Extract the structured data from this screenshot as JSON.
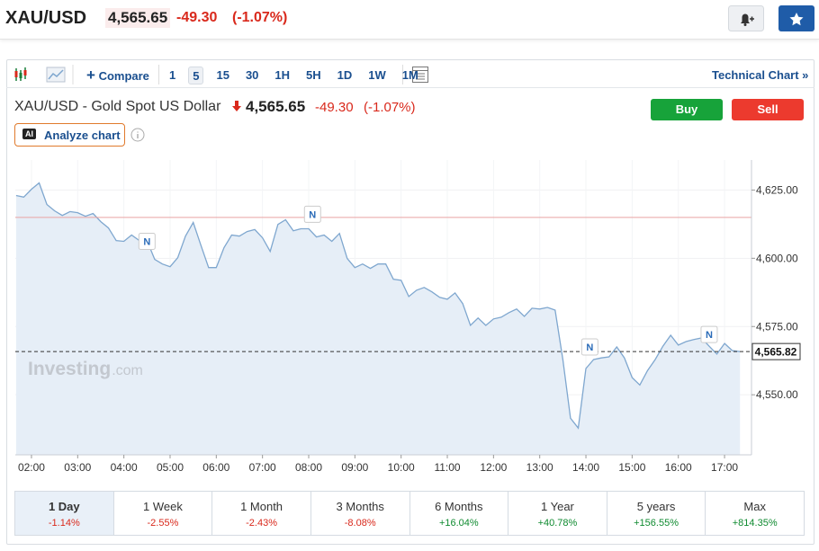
{
  "header": {
    "symbol": "XAU/USD",
    "price": "4,565.65",
    "change": "-49.30",
    "change_pct": "(-1.07%)"
  },
  "toolbar": {
    "compare": "Compare",
    "intervals": [
      "1",
      "5",
      "15",
      "30",
      "1H",
      "5H",
      "1D",
      "1W",
      "1M"
    ],
    "active_interval": "5",
    "technical_chart": "Technical Chart »"
  },
  "quote": {
    "name": "XAU/USD - Gold Spot US Dollar",
    "price": "4,565.65",
    "change": "-49.30",
    "change_pct": "(-1.07%)",
    "buy": "Buy",
    "sell": "Sell",
    "ai_badge": "AI",
    "analyze": "Analyze chart"
  },
  "chart_data": {
    "type": "area",
    "watermark": "Investing",
    "watermark_suffix": ".com",
    "x": [
      "01:40",
      "01:50",
      "02:00",
      "02:10",
      "02:20",
      "02:30",
      "02:40",
      "02:50",
      "03:00",
      "03:10",
      "03:20",
      "03:30",
      "03:40",
      "03:50",
      "04:00",
      "04:10",
      "04:20",
      "04:30",
      "04:40",
      "04:50",
      "05:00",
      "05:10",
      "05:20",
      "05:30",
      "05:40",
      "05:50",
      "06:00",
      "06:10",
      "06:20",
      "06:30",
      "06:40",
      "06:50",
      "07:00",
      "07:10",
      "07:20",
      "07:30",
      "07:40",
      "07:50",
      "08:00",
      "08:10",
      "08:20",
      "08:30",
      "08:40",
      "08:50",
      "09:00",
      "09:10",
      "09:20",
      "09:30",
      "09:40",
      "09:50",
      "10:00",
      "10:10",
      "10:20",
      "10:30",
      "10:40",
      "10:50",
      "11:00",
      "11:10",
      "11:20",
      "11:30",
      "11:40",
      "11:50",
      "12:00",
      "12:10",
      "12:20",
      "12:30",
      "12:40",
      "12:50",
      "13:00",
      "13:10",
      "13:20",
      "13:30",
      "13:40",
      "13:50",
      "14:00",
      "14:10",
      "14:20",
      "14:30",
      "14:40",
      "14:50",
      "15:00",
      "15:10",
      "15:20",
      "15:30",
      "15:40",
      "15:50",
      "16:00",
      "16:10",
      "16:20",
      "16:30",
      "16:40",
      "16:50",
      "17:00",
      "17:10",
      "17:20"
    ],
    "series": [
      {
        "name": "XAU/USD",
        "color": "#7fa7cf",
        "fill": "#e6eef7",
        "values": [
          4623.0,
          4622.4,
          4625.3,
          4627.6,
          4619.7,
          4617.4,
          4615.7,
          4617.1,
          4616.7,
          4615.4,
          4616.4,
          4613.4,
          4611.1,
          4606.5,
          4606.2,
          4608.5,
          4606.5,
          4606.5,
          4599.6,
          4597.9,
          4596.9,
          4600.2,
          4608.1,
          4613.1,
          4604.8,
          4596.6,
          4596.6,
          4603.9,
          4608.5,
          4608.1,
          4609.8,
          4610.5,
          4607.5,
          4602.5,
          4612.4,
          4614.1,
          4610.1,
          4610.8,
          4610.8,
          4607.8,
          4608.5,
          4606.2,
          4609.1,
          4599.9,
          4596.6,
          4597.9,
          4596.3,
          4597.9,
          4597.9,
          4592.3,
          4591.9,
          4586.0,
          4588.3,
          4589.3,
          4587.7,
          4585.7,
          4585.0,
          4587.3,
          4583.4,
          4575.4,
          4578.1,
          4575.4,
          4577.8,
          4578.4,
          4580.1,
          4581.4,
          4578.7,
          4581.7,
          4581.4,
          4582.0,
          4581.0,
          4562.9,
          4541.4,
          4537.8,
          4559.6,
          4562.9,
          4563.5,
          4563.9,
          4567.5,
          4563.5,
          4556.3,
          4553.6,
          4558.9,
          4562.9,
          4567.8,
          4571.8,
          4568.2,
          4569.5,
          4570.2,
          4570.8,
          4567.8,
          4564.9,
          4568.8,
          4566.2,
          4565.82
        ]
      }
    ],
    "xlim": [
      "01:39",
      "17:35"
    ],
    "xticks": [
      "02:00",
      "03:00",
      "04:00",
      "05:00",
      "06:00",
      "07:00",
      "08:00",
      "09:00",
      "10:00",
      "11:00",
      "12:00",
      "13:00",
      "14:00",
      "15:00",
      "16:00",
      "17:00"
    ],
    "ylim": [
      4528,
      4636
    ],
    "yticks": [
      {
        "value": 4625,
        "label": "4,625.00"
      },
      {
        "value": 4600,
        "label": "4,600.00"
      },
      {
        "value": 4575,
        "label": "4,575.00"
      },
      {
        "value": 4550,
        "label": "4,550.00"
      }
    ],
    "grid": true,
    "prev_close": 4614.95,
    "prev_close_color": "#e9a3a3",
    "last_price": {
      "value": 4565.82,
      "label": "4,565.82"
    },
    "news": [
      {
        "x": "04:30",
        "y": 4606.2,
        "label": "N"
      },
      {
        "x": "08:05",
        "y": 4616.1,
        "label": "N"
      },
      {
        "x": "14:05",
        "y": 4567.5,
        "label": "N"
      },
      {
        "x": "16:40",
        "y": 4572.1,
        "label": "N"
      }
    ]
  },
  "active_period": "1 Day",
  "periods": [
    {
      "label": "1 Day",
      "change": "-1.14%"
    },
    {
      "label": "1 Week",
      "change": "-2.55%"
    },
    {
      "label": "1 Month",
      "change": "-2.43%"
    },
    {
      "label": "3 Months",
      "change": "-8.08%"
    },
    {
      "label": "6 Months",
      "change": "+16.04%"
    },
    {
      "label": "1 Year",
      "change": "+40.78%"
    },
    {
      "label": "5 years",
      "change": "+156.55%"
    },
    {
      "label": "Max",
      "change": "+814.35%"
    }
  ]
}
